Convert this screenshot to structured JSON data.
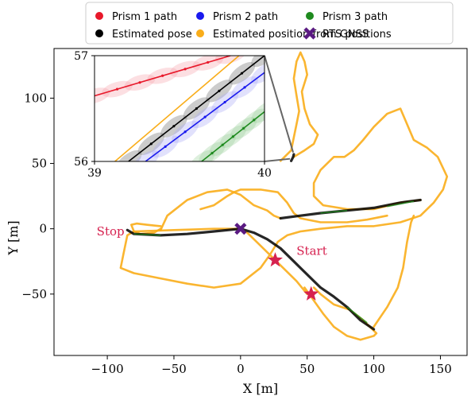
{
  "chart_data": {
    "type": "line",
    "title": "",
    "xlabel": "X [m]",
    "ylabel": "Y [m]",
    "xlim": [
      -140,
      170
    ],
    "ylim": [
      -97,
      138
    ],
    "xticks": [
      -100,
      -50,
      0,
      50,
      100,
      150
    ],
    "yticks": [
      -50,
      0,
      50,
      100
    ],
    "legend": {
      "placement": "top",
      "entries": [
        {
          "label": "Prism 1 path",
          "color": "#e8182a",
          "marker": "circle"
        },
        {
          "label": "Prism 2 path",
          "color": "#1a1aee",
          "marker": "circle"
        },
        {
          "label": "Prism 3 path",
          "color": "#1e8a1e",
          "marker": "circle"
        },
        {
          "label": "Estimated pose",
          "color": "#000000",
          "marker": "circle"
        },
        {
          "label": "Estimated position from GNSS",
          "color": "#f9ad1a",
          "marker": "circle"
        },
        {
          "label": "RTS positions",
          "color": "#5a1a82",
          "marker": "x"
        }
      ]
    },
    "series": [
      {
        "name": "Estimated position from GNSS",
        "color": "#f9ad1a",
        "points": [
          [
            50,
            -50
          ],
          [
            42,
            -40
          ],
          [
            30,
            -28
          ],
          [
            20,
            -18
          ],
          [
            12,
            -10
          ],
          [
            5,
            -3
          ],
          [
            0,
            0
          ],
          [
            -20,
            0
          ],
          [
            -50,
            -1
          ],
          [
            -80,
            -2
          ],
          [
            -85,
            -5
          ],
          [
            -88,
            -20
          ],
          [
            -90,
            -30
          ],
          [
            -80,
            -34
          ],
          [
            -60,
            -38
          ],
          [
            -40,
            -42
          ],
          [
            -20,
            -45
          ],
          [
            0,
            -42
          ],
          [
            15,
            -30
          ],
          [
            22,
            -20
          ],
          [
            28,
            -10
          ],
          [
            35,
            -5
          ],
          [
            45,
            -2
          ],
          [
            60,
            0
          ],
          [
            80,
            2
          ],
          [
            100,
            2
          ],
          [
            120,
            5
          ],
          [
            135,
            10
          ],
          [
            145,
            20
          ],
          [
            152,
            30
          ],
          [
            155,
            40
          ],
          [
            148,
            55
          ],
          [
            140,
            62
          ],
          [
            130,
            68
          ],
          [
            125,
            80
          ],
          [
            120,
            92
          ],
          [
            110,
            88
          ],
          [
            100,
            78
          ],
          [
            92,
            68
          ],
          [
            85,
            60
          ],
          [
            78,
            55
          ],
          [
            70,
            55
          ],
          [
            60,
            45
          ],
          [
            55,
            35
          ],
          [
            55,
            25
          ],
          [
            62,
            18
          ],
          [
            80,
            15
          ],
          [
            100,
            15
          ],
          [
            120,
            20
          ],
          [
            135,
            22
          ]
        ]
      },
      {
        "name": "Estimated position from GNSS",
        "color": "#f9ad1a",
        "points": [
          [
            -30,
            15
          ],
          [
            -20,
            18
          ],
          [
            -10,
            25
          ],
          [
            -5,
            28
          ],
          [
            0,
            30
          ],
          [
            15,
            30
          ],
          [
            28,
            28
          ],
          [
            35,
            20
          ],
          [
            40,
            12
          ],
          [
            45,
            8
          ],
          [
            60,
            5
          ],
          [
            80,
            5
          ],
          [
            95,
            7
          ],
          [
            110,
            10
          ]
        ]
      },
      {
        "name": "Estimated position from GNSS",
        "color": "#f9ad1a",
        "points": [
          [
            100,
            -75
          ],
          [
            110,
            -60
          ],
          [
            118,
            -45
          ],
          [
            122,
            -30
          ],
          [
            125,
            -10
          ],
          [
            128,
            5
          ],
          [
            130,
            10
          ]
        ]
      },
      {
        "name": "Estimated position from GNSS",
        "color": "#f9ad1a",
        "points": [
          [
            -60,
            -1
          ],
          [
            -55,
            10
          ],
          [
            -40,
            22
          ],
          [
            -25,
            28
          ],
          [
            -10,
            30
          ],
          [
            0,
            26
          ],
          [
            10,
            18
          ],
          [
            20,
            14
          ],
          [
            25,
            10
          ],
          [
            30,
            8
          ]
        ]
      },
      {
        "name": "Estimated position from GNSS",
        "color": "#f9ad1a",
        "points": [
          [
            48,
            -45
          ],
          [
            55,
            -55
          ],
          [
            62,
            -65
          ],
          [
            70,
            -75
          ],
          [
            80,
            -82
          ],
          [
            90,
            -85
          ],
          [
            100,
            -82
          ],
          [
            102,
            -80
          ],
          [
            92,
            -70
          ],
          [
            82,
            -62
          ],
          [
            70,
            -58
          ],
          [
            60,
            -50
          ],
          [
            55,
            -45
          ]
        ]
      },
      {
        "name": "Estimated position from GNSS",
        "color": "#f9ad1a",
        "points": [
          [
            -60,
            0
          ],
          [
            -65,
            -3
          ],
          [
            -75,
            -4
          ],
          [
            -80,
            -2
          ],
          [
            -82,
            3
          ],
          [
            -78,
            4
          ],
          [
            -70,
            3
          ],
          [
            -60,
            2
          ]
        ]
      },
      {
        "name": "Estimated position from GNSS",
        "color": "#f9ad1a",
        "points": [
          [
            40,
            55
          ],
          [
            48,
            60
          ],
          [
            55,
            65
          ],
          [
            58,
            72
          ],
          [
            52,
            80
          ],
          [
            48,
            92
          ],
          [
            46,
            105
          ],
          [
            50,
            118
          ],
          [
            48,
            128
          ],
          [
            45,
            135
          ],
          [
            42,
            128
          ],
          [
            40,
            115
          ],
          [
            42,
            102
          ],
          [
            44,
            90
          ],
          [
            42,
            80
          ],
          [
            40,
            70
          ],
          [
            38,
            60
          ],
          [
            30,
            52
          ]
        ]
      },
      {
        "name": "Estimated pose",
        "color": "#000000",
        "points": [
          [
            100,
            -77
          ],
          [
            90,
            -70
          ],
          [
            80,
            -60
          ],
          [
            70,
            -52
          ],
          [
            60,
            -45
          ],
          [
            50,
            -35
          ],
          [
            40,
            -25
          ],
          [
            30,
            -15
          ],
          [
            20,
            -8
          ],
          [
            10,
            -3
          ],
          [
            0,
            0
          ],
          [
            -20,
            -2
          ],
          [
            -40,
            -4
          ],
          [
            -60,
            -5
          ],
          [
            -80,
            -4
          ],
          [
            -85,
            -1
          ]
        ]
      },
      {
        "name": "Estimated pose",
        "color": "#000000",
        "points": [
          [
            30,
            8
          ],
          [
            45,
            10
          ],
          [
            60,
            12
          ],
          [
            80,
            14
          ],
          [
            100,
            16
          ],
          [
            120,
            20
          ],
          [
            135,
            22
          ]
        ]
      },
      {
        "name": "Estimated pose",
        "color": "#000000",
        "points": [
          [
            38,
            52
          ],
          [
            39.5,
            55
          ],
          [
            40,
            57
          ]
        ]
      }
    ],
    "rts_positions": [
      [
        0,
        0
      ]
    ],
    "annotations": [
      {
        "text": "Start",
        "x": 42,
        "y": -20
      },
      {
        "text": "Stop",
        "x": -108,
        "y": -5
      },
      {
        "text": "",
        "marker": "star",
        "x": 26,
        "y": -24
      },
      {
        "text": "",
        "marker": "star",
        "x": 53,
        "y": -50
      }
    ],
    "inset": {
      "xlim": [
        39,
        40
      ],
      "ylim": [
        56,
        57
      ],
      "xticks": [
        39,
        40
      ],
      "yticks": [
        56,
        57
      ],
      "series": [
        {
          "name": "Prism 1 path",
          "color": "#e8182a",
          "points": [
            [
              39,
              56.62
            ],
            [
              39.8,
              57.0
            ]
          ]
        },
        {
          "name": "Estimated position from GNSS",
          "color": "#f9ad1a",
          "points": [
            [
              39.12,
              56.0
            ],
            [
              39.85,
              57.0
            ]
          ]
        },
        {
          "name": "Estimated pose",
          "color": "#000000",
          "points": [
            [
              39.2,
              56.0
            ],
            [
              40,
              57.0
            ]
          ]
        },
        {
          "name": "Prism 2 path",
          "color": "#1a1aee",
          "points": [
            [
              39.3,
              56.0
            ],
            [
              40,
              56.84
            ]
          ]
        },
        {
          "name": "Prism 3 path",
          "color": "#1e8a1e",
          "points": [
            [
              39.63,
              56.0
            ],
            [
              40,
              56.47
            ]
          ]
        }
      ]
    }
  }
}
